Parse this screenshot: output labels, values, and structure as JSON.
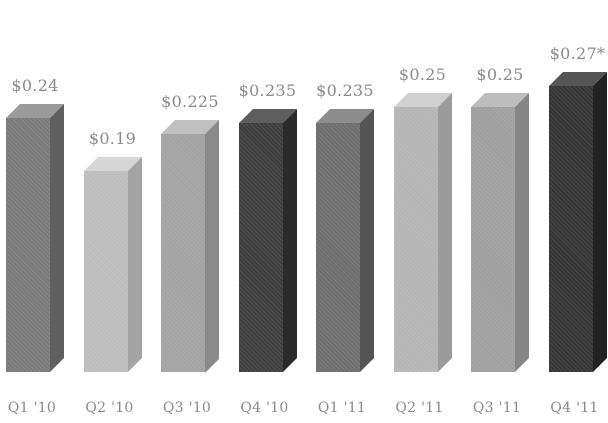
{
  "chart_data": {
    "type": "bar",
    "title": "",
    "xlabel": "",
    "ylabel": "",
    "categories": [
      "Q1 '10",
      "Q2 '10",
      "Q3 '10",
      "Q4 '10",
      "Q1 '11",
      "Q2 '11",
      "Q3 '11",
      "Q4 '11"
    ],
    "values": [
      0.24,
      0.19,
      0.225,
      0.235,
      0.235,
      0.25,
      0.25,
      0.27
    ],
    "value_labels": [
      "$0.24",
      "$0.19",
      "$0.225",
      "$0.235",
      "$0.235",
      "$0.25",
      "$0.25",
      "$0.27*"
    ],
    "ylim": [
      0,
      0.3
    ],
    "grid": false,
    "legend": "none",
    "bar_colors": [
      "#7a7a7a",
      "#bdbdbd",
      "#a3a3a3",
      "#3e3e3e",
      "#6e6e6e",
      "#b5b5b5",
      "#a0a0a0",
      "#353535"
    ],
    "bar_top_colors": [
      "#9a9a9a",
      "#d6d6d6",
      "#c0c0c0",
      "#5e5e5e",
      "#8c8c8c",
      "#d0d0d0",
      "#bdbdbd",
      "#555555"
    ],
    "bar_side_colors": [
      "#5f5f5f",
      "#a3a3a3",
      "#8a8a8a",
      "#2a2a2a",
      "#555555",
      "#9b9b9b",
      "#868686",
      "#222222"
    ]
  }
}
